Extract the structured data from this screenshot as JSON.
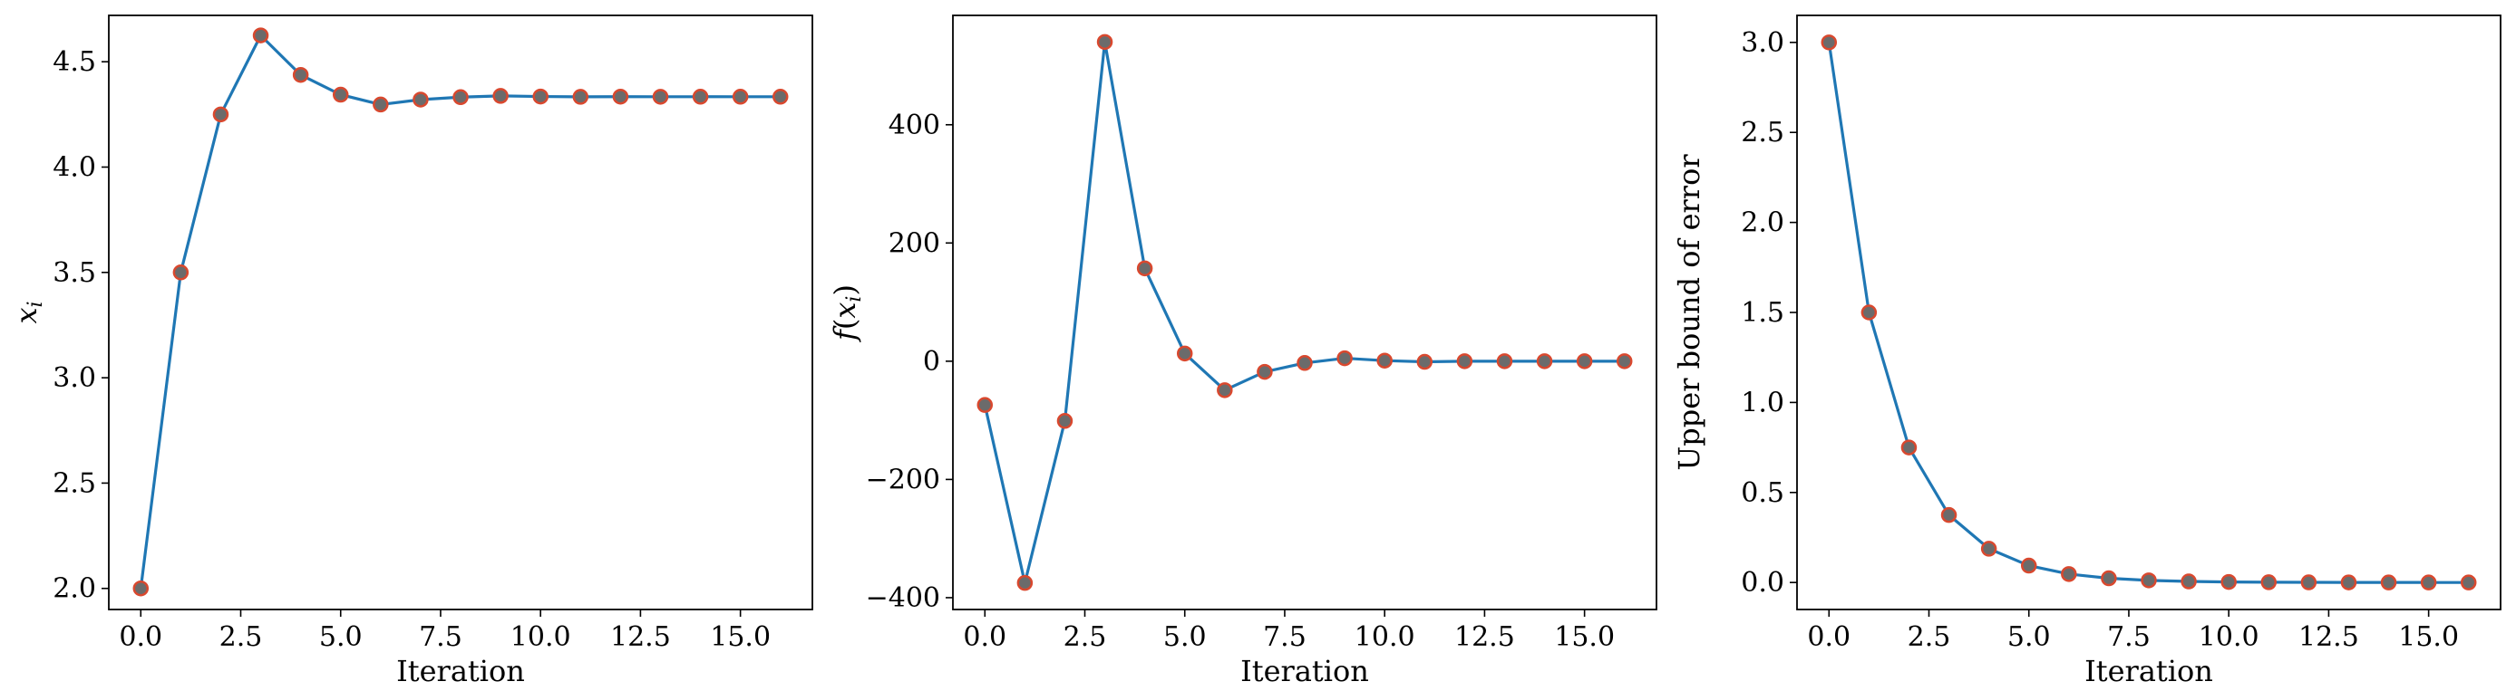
{
  "colors": {
    "line": "#1f77b4",
    "marker_face": "#6b6b6b",
    "marker_edge": "#d9482e"
  },
  "chart_data": [
    {
      "type": "line",
      "xlabel": "Iteration",
      "ylabel": "x_i",
      "xlim": [
        -0.8,
        16.8
      ],
      "ylim": [
        1.9,
        4.72
      ],
      "xticks": [
        "0.0",
        "2.5",
        "5.0",
        "7.5",
        "10.0",
        "12.5",
        "15.0"
      ],
      "yticks": [
        "2.0",
        "2.5",
        "3.0",
        "3.5",
        "4.0",
        "4.5"
      ],
      "x": [
        0,
        1,
        2,
        3,
        4,
        5,
        6,
        7,
        8,
        9,
        10,
        11,
        12,
        13,
        14,
        15,
        16
      ],
      "values": [
        2.0,
        3.5,
        4.25,
        4.625,
        4.4375,
        4.34375,
        4.296875,
        4.3203125,
        4.33203125,
        4.337890625,
        4.3349609375,
        4.33349609375,
        4.334228515625,
        4.333862304688,
        4.334045410156,
        4.333953857422,
        4.333999633789
      ]
    },
    {
      "type": "line",
      "xlabel": "Iteration",
      "ylabel": "f(x_i)",
      "xlim": [
        -0.8,
        16.8
      ],
      "ylim": [
        -420,
        585
      ],
      "xticks": [
        "0.0",
        "2.5",
        "5.0",
        "7.5",
        "10.0",
        "12.5",
        "15.0"
      ],
      "yticks": [
        "−400",
        "−200",
        "0",
        "200",
        "400"
      ],
      "x": [
        0,
        1,
        2,
        3,
        4,
        5,
        6,
        7,
        8,
        9,
        10,
        11,
        12,
        13,
        14,
        15,
        16
      ],
      "values": [
        -74,
        -375,
        -101,
        540,
        157,
        13,
        -49,
        -18,
        -3,
        5,
        1,
        -1,
        0,
        0,
        0,
        0,
        0
      ]
    },
    {
      "type": "line",
      "xlabel": "Iteration",
      "ylabel": "Upper bound of error",
      "xlim": [
        -0.8,
        16.8
      ],
      "ylim": [
        -0.15,
        3.15
      ],
      "xticks": [
        "0.0",
        "2.5",
        "5.0",
        "7.5",
        "10.0",
        "12.5",
        "15.0"
      ],
      "yticks": [
        "0.0",
        "0.5",
        "1.0",
        "1.5",
        "2.0",
        "2.5",
        "3.0"
      ],
      "x": [
        0,
        1,
        2,
        3,
        4,
        5,
        6,
        7,
        8,
        9,
        10,
        11,
        12,
        13,
        14,
        15,
        16
      ],
      "values": [
        3.0,
        1.5,
        0.75,
        0.375,
        0.1875,
        0.09375,
        0.046875,
        0.0234375,
        0.01171875,
        0.005859375,
        0.0029296875,
        0.00146484375,
        0.000732421875,
        0.000366210938,
        0.000183105469,
        9.1552734e-05,
        4.5776367e-05
      ]
    }
  ]
}
